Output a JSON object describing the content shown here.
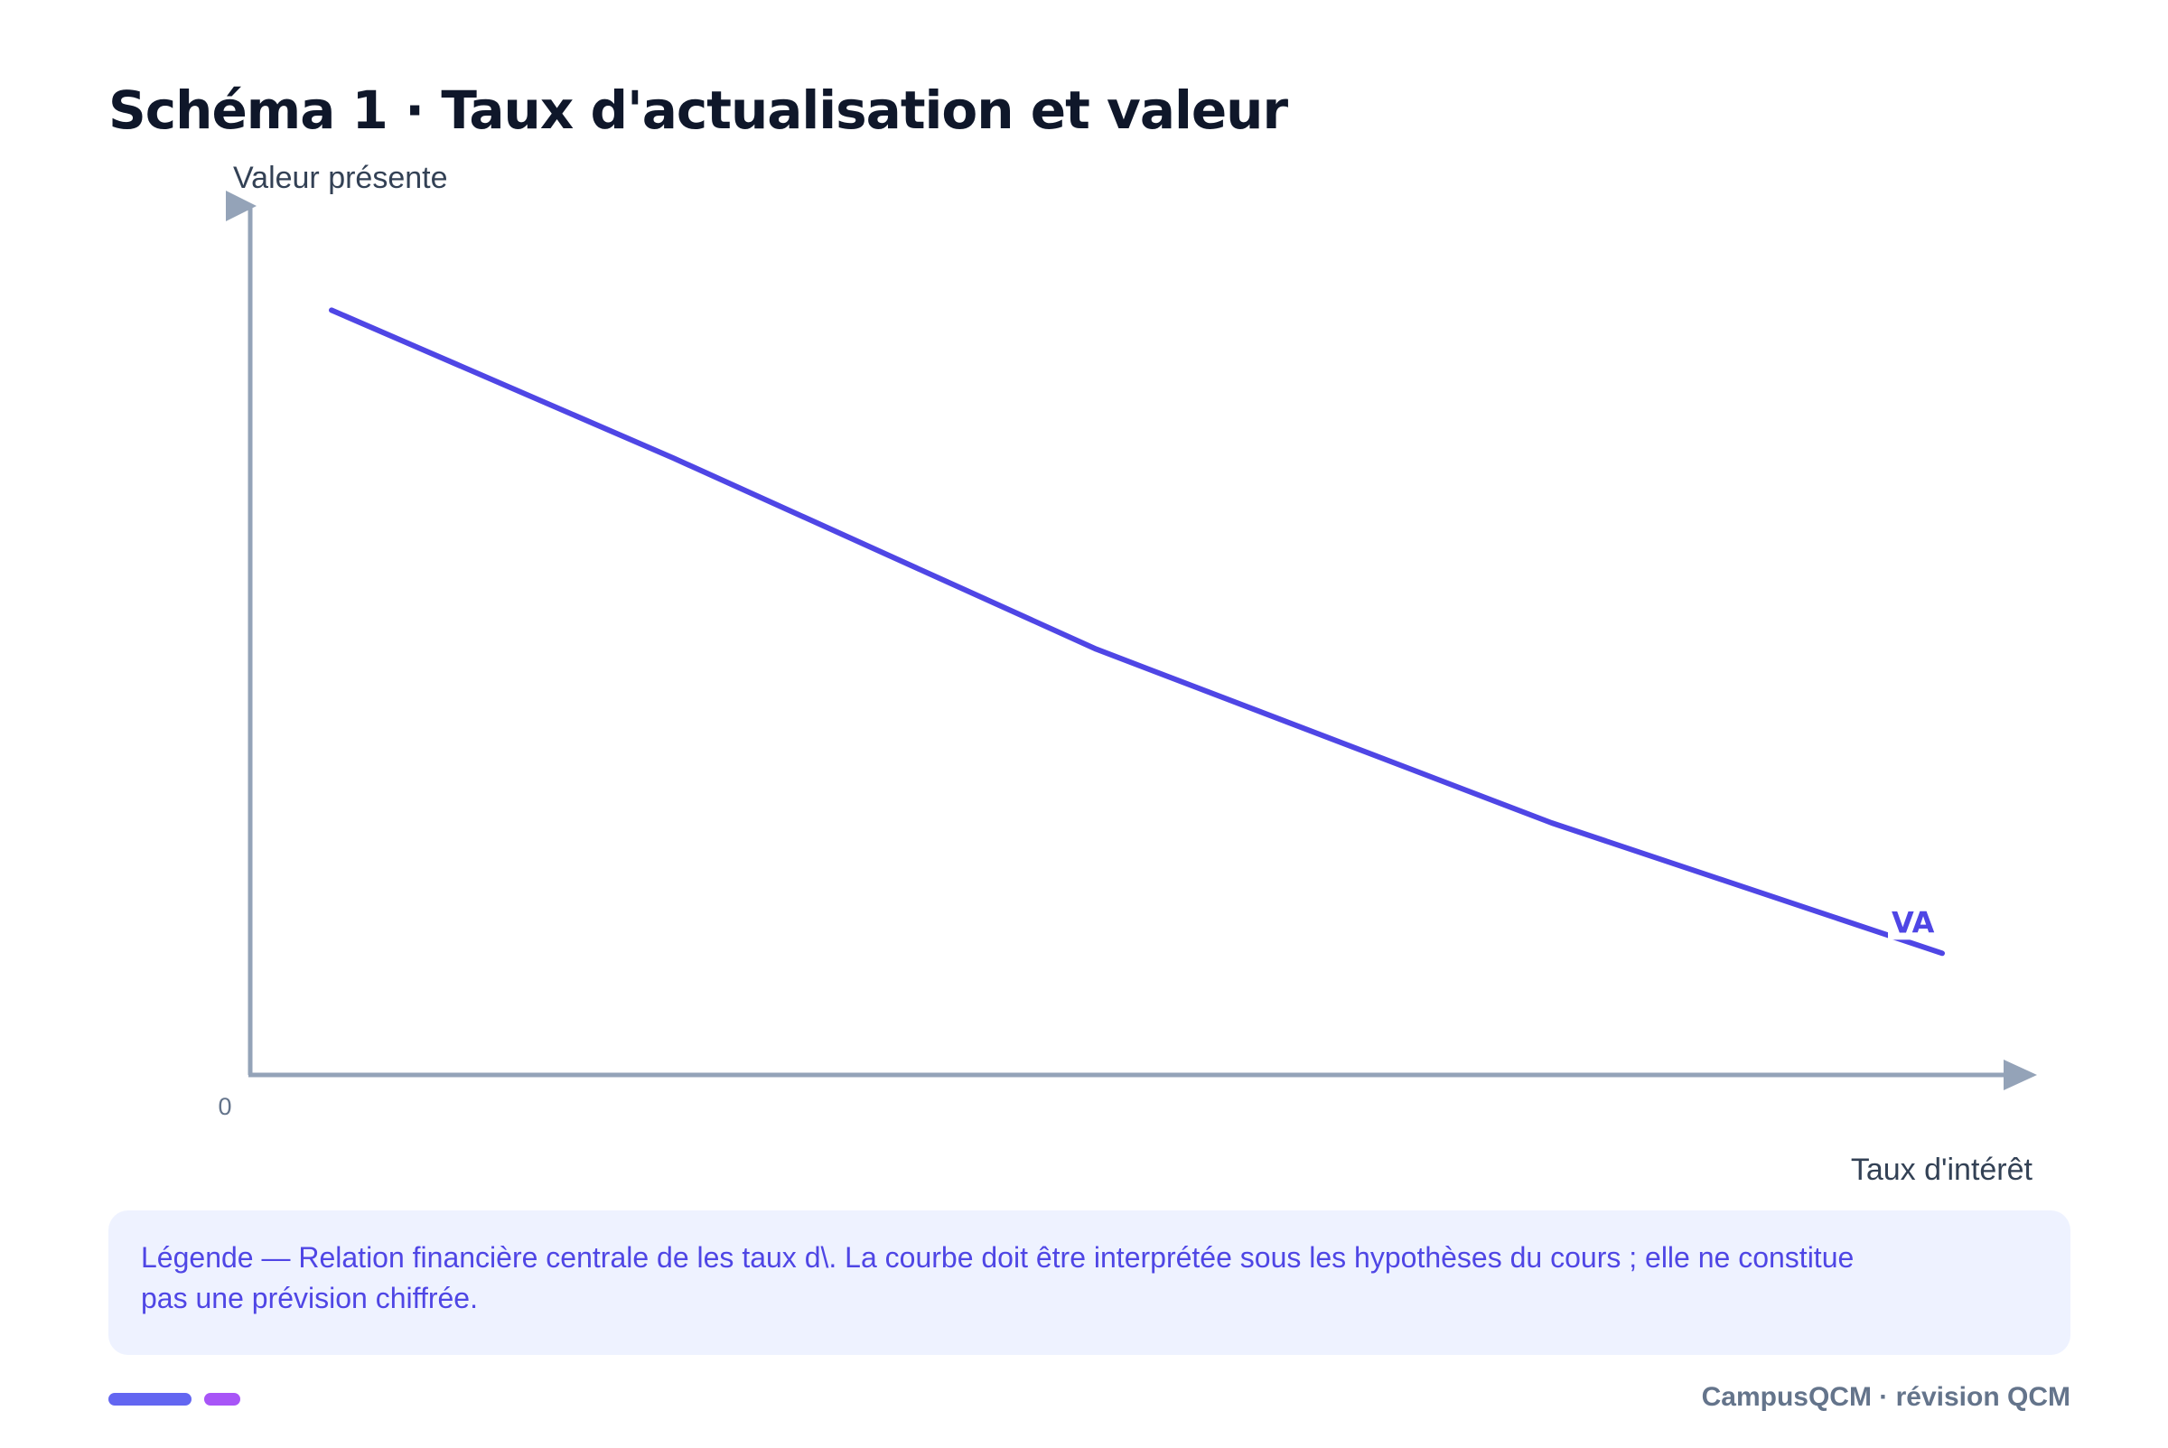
{
  "colors": {
    "accent": "#4f46e5",
    "axis": "#94a3b8",
    "title": "#0f172a",
    "legend_bg": "#eef2ff",
    "bar_primary": "#6366f1",
    "bar_secondary": "#a855f7"
  },
  "chart_data": {
    "type": "line",
    "title": "Schéma 1 · Taux d'actualisation et valeur",
    "xlabel": "Taux d'intérêt",
    "ylabel": "Valeur présente",
    "origin_label": "0",
    "x": [
      1,
      22,
      48,
      76,
      100
    ],
    "series": [
      {
        "name": "VA",
        "values": [
          88,
          71,
          49,
          29,
          14
        ]
      }
    ],
    "xlim": [
      -4,
      104
    ],
    "ylim": [
      0,
      100
    ],
    "grid": false,
    "legend": "inline label at end of line"
  },
  "legend": {
    "text": "Légende — Relation financière centrale de les taux d\\. La courbe doit être interprétée sous les hypothèses du cours ; elle ne constitue pas une prévision chiffrée."
  },
  "footer": {
    "brand": "CampusQCM · révision QCM"
  }
}
